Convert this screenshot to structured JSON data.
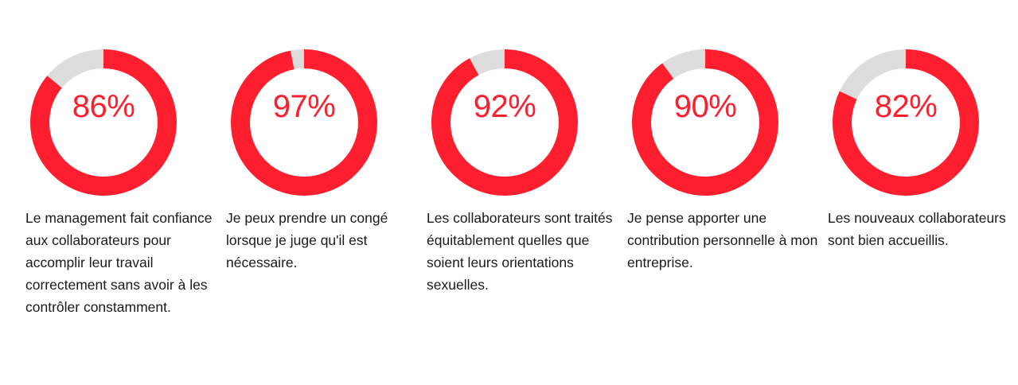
{
  "colors": {
    "accent": "#ff1e2d",
    "track": "#dddddd",
    "text": "#1a1a1a"
  },
  "chart_data": {
    "type": "pie",
    "subtype": "donut",
    "unit": "%",
    "items": [
      {
        "value": 86,
        "label": "86%",
        "caption": "Le management fait confiance aux collaborateurs pour accomplir leur travail correctement sans avoir à les contrôler constamment."
      },
      {
        "value": 97,
        "label": "97%",
        "caption": "Je peux prendre un congé lorsque je juge qu'il est nécessaire."
      },
      {
        "value": 92,
        "label": "92%",
        "caption": "Les collaborateurs sont traités équitablement quelles que soient leurs orientations sexuelles."
      },
      {
        "value": 90,
        "label": "90%",
        "caption": "Je pense apporter une contribution personnelle à mon entreprise."
      },
      {
        "value": 82,
        "label": "82%",
        "caption": "Les nouveaux collaborateurs sont bien accueillis."
      }
    ]
  }
}
